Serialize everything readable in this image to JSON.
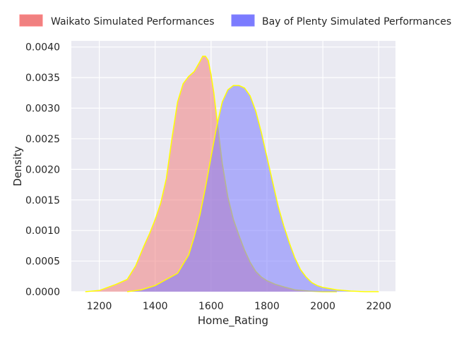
{
  "chart_data": {
    "type": "area",
    "title": "",
    "xlabel": "Home_Rating",
    "ylabel": "Density",
    "xlim": [
      1100,
      2260
    ],
    "ylim": [
      0,
      0.0041
    ],
    "x_ticks": [
      1200,
      1400,
      1600,
      1800,
      2000,
      2200
    ],
    "y_ticks": [
      0.0,
      0.0005,
      0.001,
      0.0015,
      0.002,
      0.0025,
      0.003,
      0.0035,
      0.004
    ],
    "x_tick_labels": [
      "1200",
      "1400",
      "1600",
      "1800",
      "2000",
      "2200"
    ],
    "y_tick_labels": [
      "0.0000",
      "0.0005",
      "0.0010",
      "0.0015",
      "0.0020",
      "0.0025",
      "0.0030",
      "0.0035",
      "0.0040"
    ],
    "grid": true,
    "legend_position": "top",
    "series": [
      {
        "name": "Waikato Simulated Performances",
        "color": "#f08080",
        "edge_color": "#ffff00",
        "x": [
          1150,
          1200,
          1230,
          1260,
          1300,
          1330,
          1360,
          1380,
          1400,
          1420,
          1440,
          1460,
          1480,
          1500,
          1520,
          1540,
          1560,
          1570,
          1580,
          1590,
          1600,
          1610,
          1620,
          1640,
          1660,
          1680,
          1700,
          1720,
          1740,
          1760,
          1780,
          1800,
          1830,
          1860,
          1900,
          1950,
          2000,
          2050
        ],
        "y": [
          0.0,
          2e-05,
          7e-05,
          0.00012,
          0.0002,
          0.00042,
          0.00075,
          0.00095,
          0.00118,
          0.00145,
          0.00185,
          0.0025,
          0.0031,
          0.0034,
          0.00352,
          0.0036,
          0.00376,
          0.00385,
          0.00385,
          0.00378,
          0.00355,
          0.00325,
          0.00285,
          0.0021,
          0.00155,
          0.00118,
          0.00092,
          0.00068,
          0.00048,
          0.00033,
          0.00024,
          0.00018,
          0.00012,
          8e-05,
          3e-05,
          1e-05,
          0.0,
          0.0
        ]
      },
      {
        "name": "Bay of Plenty Simulated Performances",
        "color": "#7b7bff",
        "edge_color": "#ffff00",
        "x": [
          1300,
          1350,
          1400,
          1440,
          1480,
          1500,
          1520,
          1540,
          1560,
          1580,
          1600,
          1620,
          1640,
          1660,
          1680,
          1700,
          1720,
          1740,
          1760,
          1780,
          1800,
          1820,
          1840,
          1860,
          1880,
          1900,
          1920,
          1940,
          1960,
          1980,
          2000,
          2050,
          2100,
          2150,
          2200
        ],
        "y": [
          0.0,
          3e-05,
          0.0001,
          0.0002,
          0.0003,
          0.00045,
          0.0006,
          0.0009,
          0.00125,
          0.0017,
          0.0022,
          0.0027,
          0.0031,
          0.0033,
          0.00337,
          0.00337,
          0.00333,
          0.0032,
          0.00295,
          0.0026,
          0.0022,
          0.0018,
          0.0014,
          0.00108,
          0.0008,
          0.00055,
          0.00036,
          0.00024,
          0.00015,
          0.0001,
          7e-05,
          3e-05,
          1e-05,
          0.0,
          0.0
        ]
      }
    ]
  }
}
